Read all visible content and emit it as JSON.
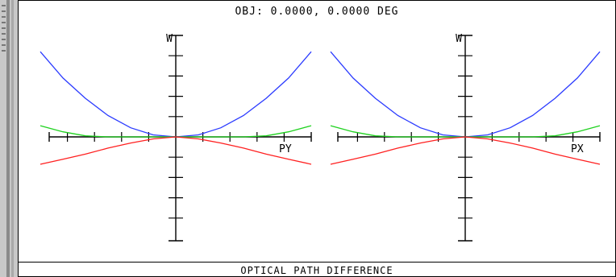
{
  "window": {
    "header": "OBJ: 0.0000, 0.0000 DEG",
    "footer": "OPTICAL PATH DIFFERENCE"
  },
  "colors": {
    "blue": "#2b3bff",
    "green": "#1fd21f",
    "red": "#ff2020",
    "axis": "#000000"
  },
  "chart_data": [
    {
      "type": "line",
      "title": "",
      "xlabel": "PY",
      "ylabel": "W",
      "xlim": [
        -1,
        1
      ],
      "ylim": [
        -1,
        1
      ],
      "series": [
        {
          "color": "#2b3bff",
          "x": [
            -1,
            -0.833,
            -0.667,
            -0.5,
            -0.333,
            -0.167,
            0,
            0.167,
            0.333,
            0.5,
            0.667,
            0.833,
            1
          ],
          "y": [
            0.84,
            0.58,
            0.38,
            0.21,
            0.09,
            0.02,
            0,
            0.02,
            0.09,
            0.21,
            0.38,
            0.58,
            0.84
          ]
        },
        {
          "color": "#1fd21f",
          "x": [
            -1,
            -0.833,
            -0.667,
            -0.5,
            -0.333,
            -0.167,
            0,
            0.167,
            0.333,
            0.5,
            0.667,
            0.833,
            1
          ],
          "y": [
            0.11,
            0.05,
            0.01,
            0,
            0,
            0,
            0,
            0,
            0,
            0,
            0.01,
            0.05,
            0.11
          ]
        },
        {
          "color": "#ff2020",
          "x": [
            -1,
            -0.833,
            -0.667,
            -0.5,
            -0.333,
            -0.167,
            0,
            0.167,
            0.333,
            0.5,
            0.667,
            0.833,
            1
          ],
          "y": [
            -0.27,
            -0.22,
            -0.17,
            -0.11,
            -0.06,
            -0.02,
            0,
            -0.02,
            -0.06,
            -0.11,
            -0.17,
            -0.22,
            -0.27
          ]
        }
      ]
    },
    {
      "type": "line",
      "title": "",
      "xlabel": "PX",
      "ylabel": "W",
      "xlim": [
        -1,
        1
      ],
      "ylim": [
        -1,
        1
      ],
      "series": [
        {
          "color": "#2b3bff",
          "x": [
            -1,
            -0.833,
            -0.667,
            -0.5,
            -0.333,
            -0.167,
            0,
            0.167,
            0.333,
            0.5,
            0.667,
            0.833,
            1
          ],
          "y": [
            0.84,
            0.58,
            0.38,
            0.21,
            0.09,
            0.02,
            0,
            0.02,
            0.09,
            0.21,
            0.38,
            0.58,
            0.84
          ]
        },
        {
          "color": "#1fd21f",
          "x": [
            -1,
            -0.833,
            -0.667,
            -0.5,
            -0.333,
            -0.167,
            0,
            0.167,
            0.333,
            0.5,
            0.667,
            0.833,
            1
          ],
          "y": [
            0.11,
            0.05,
            0.01,
            0,
            0,
            0,
            0,
            0,
            0,
            0,
            0.01,
            0.05,
            0.11
          ]
        },
        {
          "color": "#ff2020",
          "x": [
            -1,
            -0.833,
            -0.667,
            -0.5,
            -0.333,
            -0.167,
            0,
            0.167,
            0.333,
            0.5,
            0.667,
            0.833,
            1
          ],
          "y": [
            -0.27,
            -0.22,
            -0.17,
            -0.11,
            -0.06,
            -0.02,
            0,
            -0.02,
            -0.06,
            -0.11,
            -0.17,
            -0.22,
            -0.27
          ]
        }
      ]
    }
  ]
}
